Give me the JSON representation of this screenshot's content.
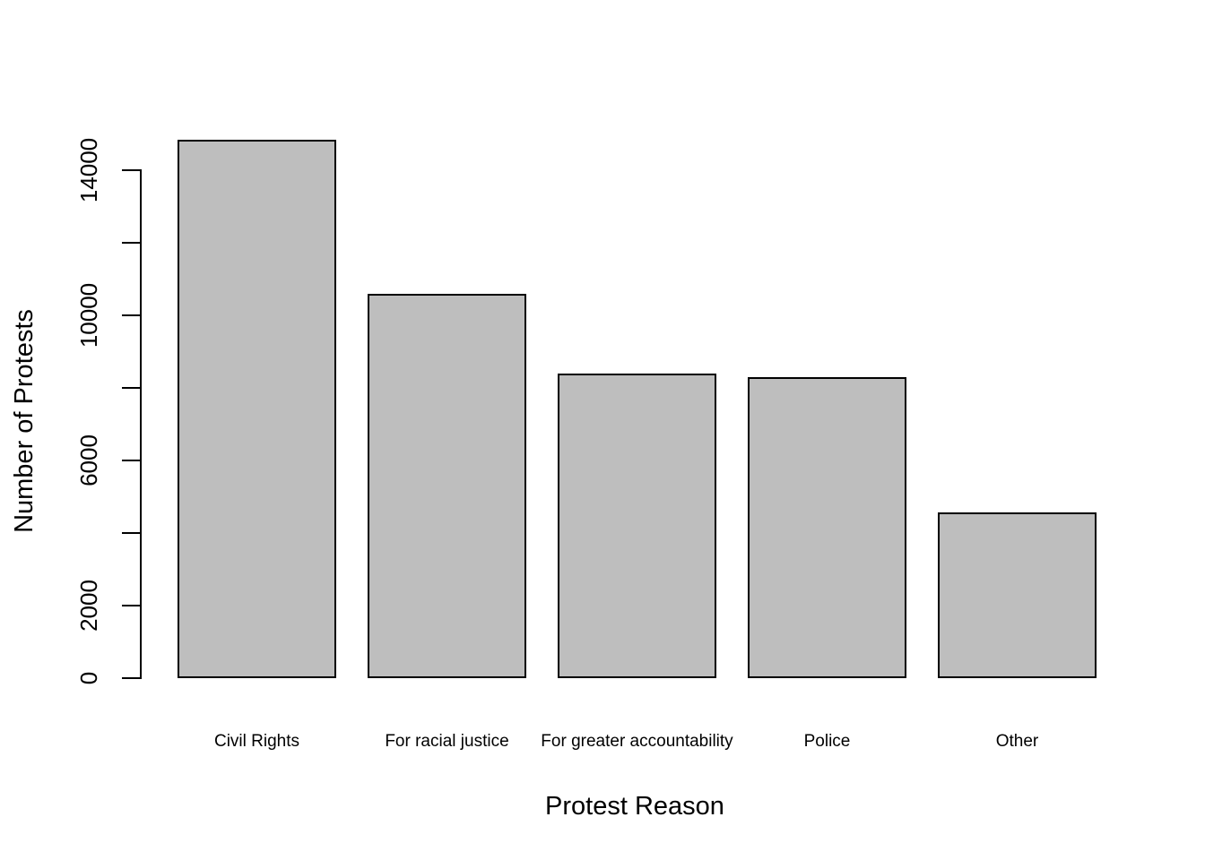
{
  "chart_data": {
    "type": "bar",
    "title": "",
    "xlabel": "Protest Reason",
    "ylabel": "Number of Protests",
    "categories": [
      "Civil Rights",
      "For racial justice",
      "For greater accountability",
      "Police",
      "Other"
    ],
    "values": [
      14850,
      10600,
      8400,
      8300,
      4580
    ],
    "ylim": [
      0,
      14000
    ],
    "yticks": [
      0,
      2000,
      4000,
      6000,
      8000,
      10000,
      12000,
      14000
    ],
    "ytick_labels": [
      "0",
      "2000",
      "",
      "6000",
      "",
      "10000",
      "",
      "14000"
    ],
    "bar_fill": "#BEBEBE",
    "bar_border": "#000000",
    "axis_color": "#000000",
    "background": "#FFFFFF",
    "grid": false,
    "legend_position": "none"
  }
}
